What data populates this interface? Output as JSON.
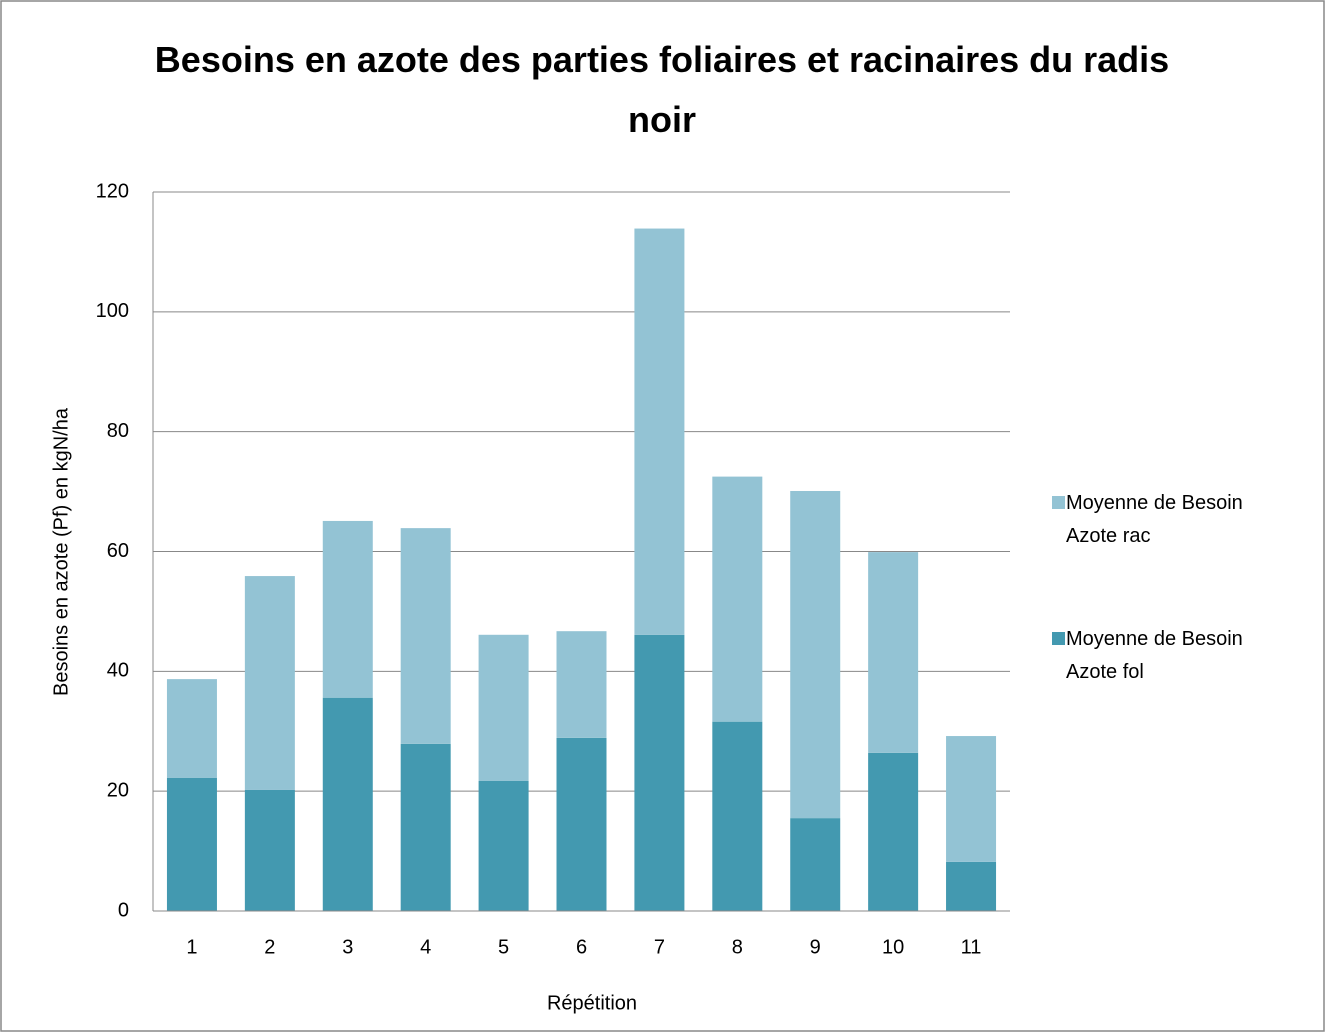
{
  "chart_data": {
    "type": "stacked_bar",
    "title": "Besoins en azote des parties foliaires et racinaires du radis noir",
    "x_label": "Répétition",
    "y_label": "Besoins en azote (Pf) en kgN/ha",
    "categories": [
      "1",
      "2",
      "3",
      "4",
      "5",
      "6",
      "7",
      "8",
      "9",
      "10",
      "11"
    ],
    "series": [
      {
        "name": "Moyenne de Besoin Azote fol",
        "color": "#4399b0",
        "values": [
          22.2,
          20.2,
          35.6,
          27.9,
          21.7,
          28.9,
          46.1,
          31.6,
          15.5,
          26.4,
          8.2
        ]
      },
      {
        "name": "Moyenne de Besoin Azote rac",
        "color": "#93c3d4",
        "values": [
          16.5,
          35.7,
          29.5,
          36.0,
          24.4,
          17.8,
          67.8,
          40.9,
          54.6,
          33.5,
          21.0
        ]
      }
    ],
    "ylim": [
      0,
      120
    ],
    "yticks": [
      0,
      20,
      40,
      60,
      80,
      100,
      120
    ],
    "grid": true,
    "legend": "right"
  }
}
